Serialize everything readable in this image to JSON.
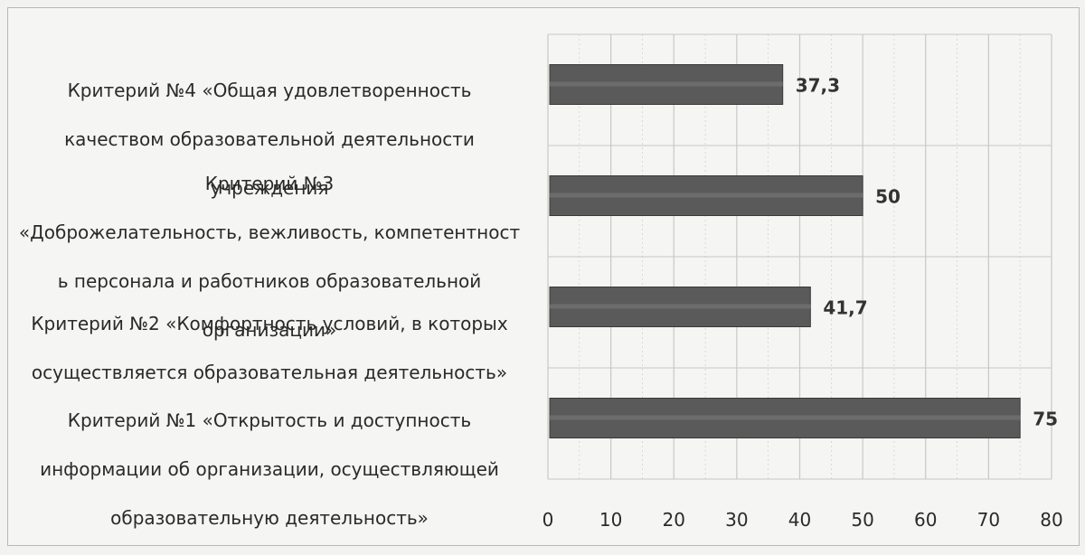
{
  "chart_data": {
    "type": "bar",
    "orientation": "horizontal",
    "title": "",
    "xlabel": "",
    "ylabel": "",
    "categories": [
      "Критерий №4 «Общая удовлетворенность качеством образовательной деятельности учреждения",
      "Критерий №3 «Доброжелательность, вежливость, компетентность персонала и работников образовательной организации»",
      "Критерий №2 «Комфортность условий, в которых осуществляется образовательная деятельность»",
      "Критерий №1 «Открытость и доступность информации об организации, осуществляющей образовательную деятельность»"
    ],
    "category_lines": [
      [
        "Критерий №4 «Общая удовлетворенность",
        "качеством образовательной деятельности",
        "учреждения"
      ],
      [
        "Критерий №3",
        "«Доброжелательность, вежливость, компетентност",
        "ь персонала и работников образовательной",
        "организации»"
      ],
      [
        "Критерий №2 «Комфортность условий, в которых",
        "осуществляется образовательная деятельность»"
      ],
      [
        "Критерий №1 «Открытость и доступность",
        "информации об организации, осуществляющей",
        "образовательную деятельность»"
      ]
    ],
    "values": [
      37.3,
      50,
      41.7,
      75
    ],
    "data_labels": [
      "37,3",
      "50",
      "41,7",
      "75"
    ],
    "xlim": [
      0,
      80
    ],
    "x_ticks": [
      "0",
      "10",
      "20",
      "30",
      "40",
      "50",
      "60",
      "70",
      "80"
    ],
    "grid": true,
    "legend": "none",
    "bar_color": "#5a5a5a",
    "grid_color": "#c8c8c8"
  }
}
